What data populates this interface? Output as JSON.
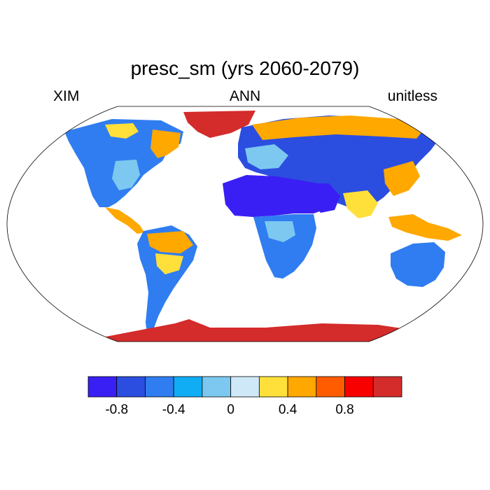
{
  "title": "presc_sm (yrs 2060-2079)",
  "left_label": "XIM",
  "center_label": "ANN",
  "right_label": "unitless",
  "colorbar": {
    "colors": [
      "#3a1ff5",
      "#2b4ee0",
      "#2f7df0",
      "#10adf5",
      "#7cc8f0",
      "#cfe8f8",
      "#ffe03a",
      "#ffa800",
      "#ff5c00",
      "#f80000",
      "#d42b2b"
    ],
    "tick_labels": [
      "-0.8",
      "-0.4",
      "0",
      "0.4",
      "0.8"
    ],
    "tick_values": [
      -0.8,
      -0.4,
      0,
      0.4,
      0.8
    ],
    "min": -1.0,
    "max": 1.2,
    "step": 0.2
  },
  "icons": {
    "map": "world-map-robinson"
  }
}
